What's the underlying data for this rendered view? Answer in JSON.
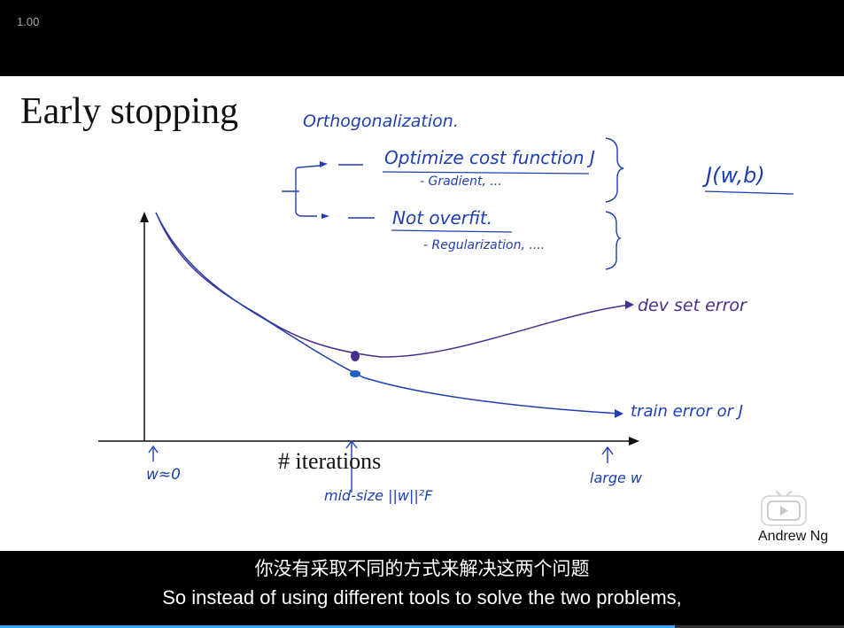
{
  "player": {
    "playback_speed": "1.00",
    "progress": 0.8
  },
  "slide": {
    "title": "Early stopping",
    "x_axis_label": "# iterations",
    "presenter": "Andrew Ng",
    "annotations": {
      "orthogonalization": "Orthogonalization.",
      "optimize": "Optimize cost function J",
      "gradient": "- Gradient, ...",
      "not_overfit": "Not overfit.",
      "regularization": "- Regularization, ....",
      "j_wb": "J(w,b)",
      "dev_error": "dev set error",
      "train_error": "train error or J",
      "w_approx_0": "w≈0",
      "mid_size": "mid-size ||w||²F",
      "large_w": "large w"
    }
  },
  "subtitles": {
    "chinese": "你没有采取不同的方式来解决这两个问题",
    "english": "So instead of using different tools to solve the two problems,"
  },
  "colors": {
    "ink_blue": "#1f3fb0",
    "ink_purple": "#4a2d8c",
    "progress_accent": "#37a2ff"
  },
  "icons": {
    "logo": "play-tv-icon"
  }
}
